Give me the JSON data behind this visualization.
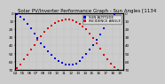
{
  "title": "Solar PV/Inverter Performance Graph - Sun Angles [1134",
  "legend_labels": [
    "SUN ALTITUDE",
    "INCIDENCE ANGLE"
  ],
  "legend_colors": [
    "#0000dd",
    "#dd0000"
  ],
  "sun_altitude_x": [
    4.2,
    4.7,
    5.2,
    5.7,
    6.2,
    6.7,
    7.2,
    7.7,
    8.2,
    8.7,
    9.2,
    9.7,
    10.2,
    10.7,
    11.2,
    11.7,
    12.2,
    12.7,
    13.2,
    13.7,
    14.2,
    14.7,
    15.2,
    15.7,
    16.2,
    16.7,
    17.2,
    17.7,
    18.2,
    18.7
  ],
  "sun_altitude_y": [
    1,
    4,
    8,
    13,
    19,
    25,
    31,
    37,
    42,
    47,
    52,
    56,
    59,
    61,
    63,
    64,
    63,
    62,
    59,
    55,
    50,
    45,
    39,
    33,
    26,
    19,
    13,
    7,
    2,
    0
  ],
  "incidence_x": [
    4.2,
    4.7,
    5.2,
    5.7,
    6.2,
    6.7,
    7.2,
    7.7,
    8.2,
    8.7,
    9.2,
    9.7,
    10.2,
    10.7,
    11.2,
    11.7,
    12.2,
    12.7,
    13.2,
    13.7,
    14.2,
    14.7,
    15.2,
    15.7,
    16.2,
    16.7,
    17.2,
    17.7,
    18.2,
    18.7
  ],
  "incidence_y": [
    68,
    63,
    57,
    51,
    45,
    39,
    33,
    28,
    23,
    19,
    15,
    12,
    10,
    9,
    8,
    8,
    9,
    11,
    13,
    16,
    20,
    25,
    31,
    37,
    44,
    51,
    57,
    62,
    67,
    70
  ],
  "xlim": [
    4.0,
    19.5
  ],
  "ylim_top": 70,
  "ylim_bottom": 0,
  "bg_color": "#cccccc",
  "grid_color": "#aaaaaa",
  "title_fontsize": 4.0,
  "tick_fontsize": 3.0,
  "dot_size": 1.5
}
